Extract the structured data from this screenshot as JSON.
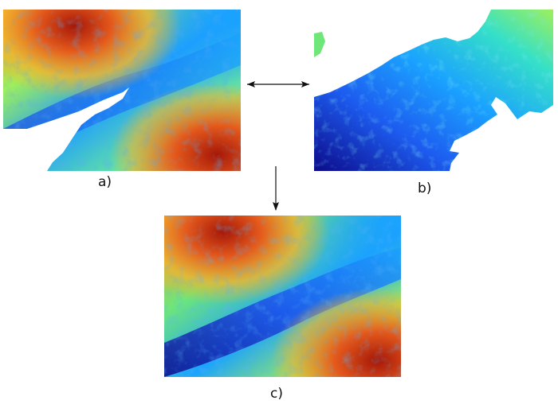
{
  "figure": {
    "captions": {
      "a": "a)",
      "b": "b)",
      "c": "c)"
    },
    "panels": [
      {
        "id": "a",
        "icon": "elevation-map-original"
      },
      {
        "id": "b",
        "icon": "elevation-map-valley-fill"
      },
      {
        "id": "c",
        "icon": "elevation-map-merged"
      }
    ],
    "colors": {
      "low": "#1a10a8",
      "mid_low": "#1aa2ff",
      "mid": "#35e0c8",
      "mid_high": "#b7f04a",
      "high_mid": "#f3b22d",
      "high": "#e4591c",
      "peak": "#a61708",
      "nodata": "#ffffff",
      "arrow": "#111111"
    },
    "arrows": [
      {
        "name": "double-headed-arrow",
        "between": [
          "a",
          "b"
        ]
      },
      {
        "name": "down-arrow",
        "from": "a-b",
        "to": "c"
      }
    ]
  }
}
